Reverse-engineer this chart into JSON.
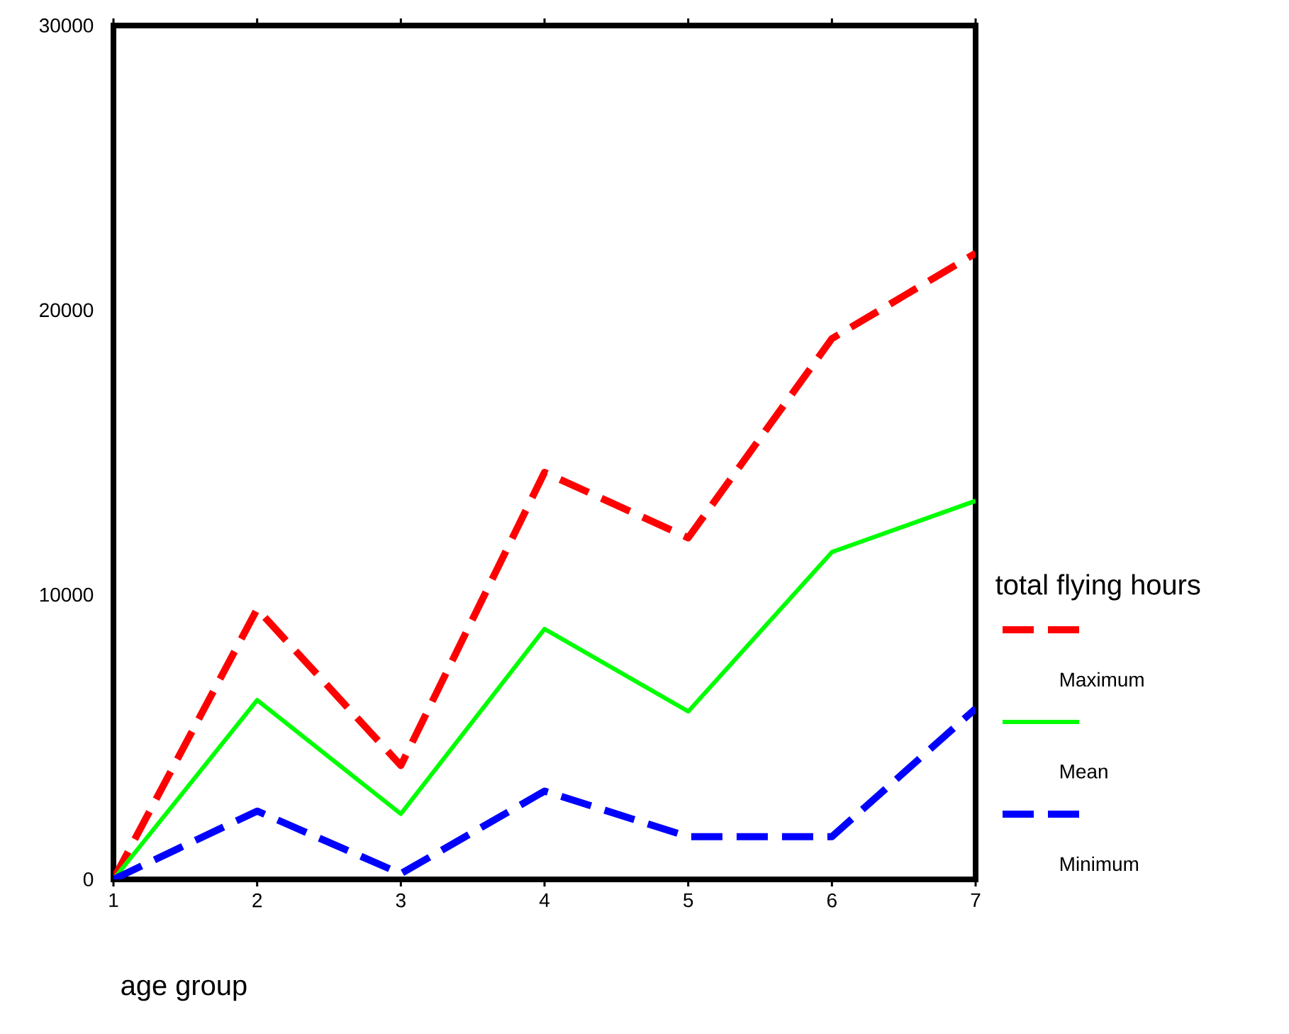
{
  "chart_data": {
    "type": "line",
    "xlabel": "age group",
    "legend_title": "total flying hours",
    "x": [
      1,
      2,
      3,
      4,
      5,
      6,
      7
    ],
    "xlim": [
      1,
      7
    ],
    "xticks": [
      1,
      2,
      3,
      4,
      5,
      6,
      7
    ],
    "ylim": [
      0,
      30000
    ],
    "yticks": [
      0,
      10000,
      20000,
      30000
    ],
    "grid": false,
    "legend": "right",
    "marker": "none",
    "series": [
      {
        "name": "Maximum",
        "color": "#ff0000",
        "line_style": "dashed",
        "values": [
          0,
          9500,
          4000,
          14300,
          12000,
          19000,
          22000
        ]
      },
      {
        "name": "Mean",
        "color": "#00ff00",
        "line_style": "solid",
        "values": [
          0,
          6300,
          2300,
          8800,
          5900,
          11500,
          13300
        ]
      },
      {
        "name": "Minimum",
        "color": "#0000ff",
        "line_style": "dashed",
        "values": [
          0,
          2400,
          200,
          3100,
          1500,
          1500,
          6000
        ]
      }
    ]
  }
}
